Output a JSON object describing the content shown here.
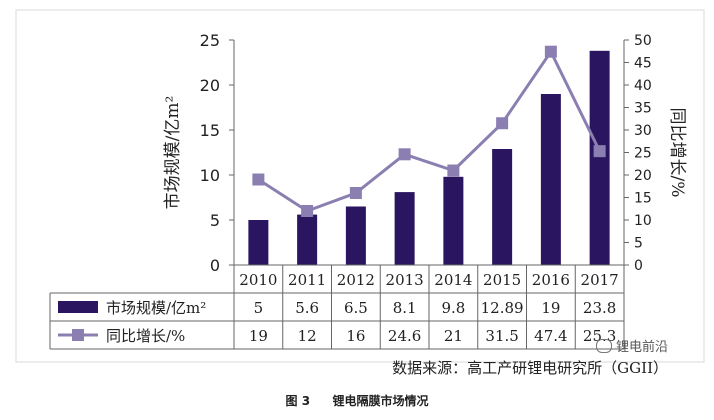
{
  "chart_data": {
    "type": "bar",
    "categories": [
      "2010",
      "2011",
      "2012",
      "2013",
      "2014",
      "2015",
      "2016",
      "2017"
    ],
    "series": [
      {
        "name": "市场规模/亿m²",
        "type": "bar",
        "axis": "left",
        "values": [
          5,
          5.6,
          6.5,
          8.1,
          9.8,
          12.89,
          19,
          23.8
        ],
        "table_labels": [
          "5",
          "5.6",
          "6.5",
          "8.1",
          "9.8",
          "12.89",
          "19",
          "23.8"
        ],
        "color": "#2a1660"
      },
      {
        "name": "同比增长/%",
        "type": "line",
        "axis": "right",
        "values": [
          19,
          12,
          16,
          24.6,
          21,
          31.5,
          47.4,
          25.3
        ],
        "table_labels": [
          "19",
          "12",
          "16",
          "24.6",
          "21",
          "31.5",
          "47.4",
          "25.3"
        ],
        "color": "#8b7fb2"
      }
    ],
    "ylabel": "市场规模/亿m²",
    "y2label": "同比增长/%",
    "ylim": [
      0,
      25
    ],
    "y2lim": [
      0,
      50
    ],
    "yticks": [
      "0",
      "5",
      "10",
      "15",
      "20",
      "25"
    ],
    "y2ticks": [
      "0",
      "5",
      "10",
      "15",
      "20",
      "25",
      "30",
      "35",
      "40",
      "45",
      "50"
    ],
    "grid": false,
    "legend": "data table below chart"
  },
  "source_text": "数据来源：高工产研锂电研究所（GGII）",
  "caption": {
    "label": "图 3",
    "title": "锂电隔膜市场情况"
  },
  "watermark": "锂电前沿",
  "colors": {
    "bar": "#2a1660",
    "line": "#8b7fb2",
    "frame": "#d8d8d8"
  }
}
